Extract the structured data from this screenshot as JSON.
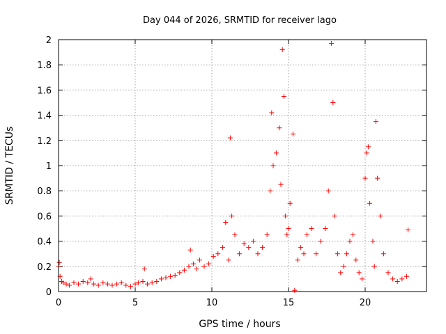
{
  "chart_data": {
    "type": "scatter",
    "title": "Day 044 of 2026, SRMTID for receiver lago",
    "xlabel": "GPS time / hours",
    "ylabel": "SRMTID / TECUs",
    "xlim": [
      0,
      24
    ],
    "ylim": [
      0,
      2
    ],
    "xticks": [
      0,
      5,
      10,
      15,
      20
    ],
    "yticks": [
      0,
      0.2,
      0.4,
      0.6,
      0.8,
      1,
      1.2,
      1.4,
      1.6,
      1.8,
      2
    ],
    "grid": true,
    "marker": "plus",
    "color": "#ff0000",
    "series": [
      {
        "name": "SRMTID",
        "x": [
          0.0,
          0.05,
          0.1,
          0.2,
          0.3,
          0.5,
          0.7,
          1.0,
          1.3,
          1.6,
          1.9,
          2.1,
          2.3,
          2.6,
          2.9,
          3.2,
          3.5,
          3.8,
          4.1,
          4.4,
          4.7,
          5.0,
          5.2,
          5.5,
          5.6,
          5.8,
          6.1,
          6.4,
          6.7,
          7.0,
          7.3,
          7.6,
          7.9,
          8.2,
          8.5,
          8.6,
          8.8,
          9.0,
          9.2,
          9.5,
          9.8,
          10.1,
          10.4,
          10.7,
          10.9,
          11.1,
          11.2,
          11.3,
          11.5,
          11.8,
          12.1,
          12.4,
          12.7,
          13.0,
          13.3,
          13.6,
          13.8,
          13.9,
          14.0,
          14.2,
          14.4,
          14.5,
          14.6,
          14.7,
          14.8,
          14.9,
          15.0,
          15.1,
          15.3,
          15.4,
          15.6,
          15.8,
          16.0,
          16.2,
          16.5,
          16.8,
          17.1,
          17.4,
          17.6,
          17.8,
          17.9,
          18.0,
          18.2,
          18.4,
          18.6,
          18.8,
          19.0,
          19.2,
          19.4,
          19.6,
          19.8,
          20.0,
          20.1,
          20.2,
          20.3,
          20.5,
          20.6,
          20.7,
          20.8,
          21.0,
          21.2,
          21.5,
          21.8,
          22.1,
          22.4,
          22.7,
          22.8
        ],
        "y": [
          0.2,
          0.23,
          0.12,
          0.08,
          0.07,
          0.06,
          0.05,
          0.07,
          0.06,
          0.08,
          0.07,
          0.1,
          0.06,
          0.05,
          0.07,
          0.06,
          0.05,
          0.06,
          0.07,
          0.05,
          0.04,
          0.06,
          0.07,
          0.08,
          0.18,
          0.06,
          0.07,
          0.08,
          0.1,
          0.11,
          0.12,
          0.13,
          0.15,
          0.17,
          0.2,
          0.33,
          0.22,
          0.18,
          0.25,
          0.2,
          0.22,
          0.28,
          0.3,
          0.35,
          0.55,
          0.25,
          1.22,
          0.6,
          0.45,
          0.3,
          0.38,
          0.35,
          0.4,
          0.3,
          0.35,
          0.45,
          0.8,
          1.42,
          1.0,
          1.1,
          1.3,
          0.85,
          1.92,
          1.55,
          0.6,
          0.45,
          0.5,
          0.7,
          1.25,
          0.01,
          0.25,
          0.35,
          0.3,
          0.45,
          0.5,
          0.3,
          0.4,
          0.5,
          0.8,
          1.97,
          1.5,
          0.6,
          0.3,
          0.15,
          0.2,
          0.3,
          0.4,
          0.45,
          0.25,
          0.15,
          0.1,
          0.9,
          1.1,
          1.15,
          0.7,
          0.4,
          0.2,
          1.35,
          0.9,
          0.6,
          0.3,
          0.15,
          0.1,
          0.08,
          0.1,
          0.12,
          0.49
        ]
      }
    ]
  }
}
